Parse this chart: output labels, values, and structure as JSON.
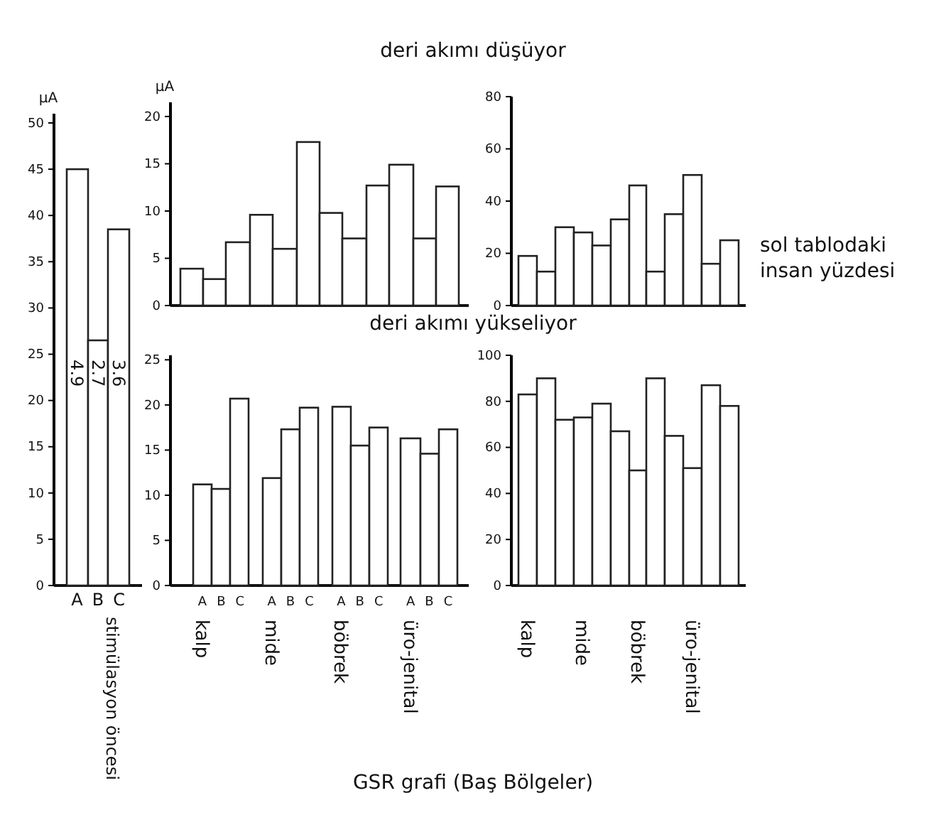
{
  "chart_data": [
    {
      "type": "bar",
      "ylabel": "μA",
      "categories": [
        "A",
        "B",
        "C"
      ],
      "series": [
        {
          "color": "#ffffff",
          "values": [
            45,
            26.5,
            38.5
          ]
        }
      ],
      "ylim": [
        0,
        51
      ],
      "yticks": [
        0,
        5,
        10,
        15,
        20,
        25,
        30,
        35,
        40,
        45,
        50
      ],
      "annotations": [
        "4.9",
        "2.7",
        "3.6",
        "stimülasyon öncesi"
      ]
    },
    {
      "type": "bar",
      "title": "deri akımı düşüyor",
      "ylabel": "μA",
      "categories": [
        null,
        null,
        null,
        null,
        null,
        null,
        null,
        null,
        null,
        null,
        null,
        null
      ],
      "series": [
        {
          "color": "#ffffff",
          "values": [
            3.9,
            2.8,
            6.7,
            9.6,
            6,
            17.3,
            9.8,
            7.1,
            12.7,
            14.9,
            7.1,
            12.6
          ]
        }
      ],
      "ylim": [
        0,
        21.5
      ],
      "yticks": [
        0,
        5,
        10,
        15,
        20
      ],
      "tick_labels": "y"
    },
    {
      "type": "bar",
      "categories": [
        null,
        null,
        null,
        null,
        null,
        null,
        null,
        null,
        null,
        null,
        null,
        null
      ],
      "series": [
        {
          "color": "#ffffff",
          "values": [
            19,
            13,
            30,
            28,
            23,
            33,
            46,
            13,
            35,
            50,
            16,
            25
          ]
        }
      ],
      "ylim": [
        0,
        80
      ],
      "yticks": [
        0,
        20,
        40,
        60,
        80
      ],
      "tick_labels": "y",
      "annotations": [
        "sol tablodaki insan yüzdesi"
      ]
    },
    {
      "type": "bar",
      "title": "deri akımı yükseliyor",
      "categories": [
        "A",
        "B",
        "C",
        "A",
        "B",
        "C",
        "A",
        "B",
        "C",
        "A",
        "B",
        "C"
      ],
      "series": [
        {
          "color": "#ffffff",
          "values": [
            11.2,
            10.7,
            20.7,
            11.9,
            17.3,
            19.7,
            19.8,
            15.5,
            17.5,
            16.3,
            14.6,
            17.3
          ]
        }
      ],
      "ylim": [
        0,
        25.5
      ],
      "yticks": [
        0,
        5,
        10,
        15,
        20,
        25
      ],
      "annotations": [
        "kalp",
        "mide",
        "böbrek",
        "üro-jenital",
        "GSR grafi (Baş Bölgeler)"
      ]
    },
    {
      "type": "bar",
      "categories": [
        null,
        null,
        null,
        null,
        null,
        null,
        null,
        null,
        null,
        null,
        null,
        null
      ],
      "series": [
        {
          "color": "#ffffff",
          "values": [
            83,
            90,
            72,
            73,
            79,
            67,
            50,
            90,
            65,
            51,
            87,
            78
          ]
        }
      ],
      "ylim": [
        0,
        100
      ],
      "yticks": [
        0,
        20,
        40,
        60,
        80,
        100
      ],
      "annotations": [
        "kalp",
        "mide",
        "böbrek",
        "üro-jenital"
      ]
    }
  ]
}
